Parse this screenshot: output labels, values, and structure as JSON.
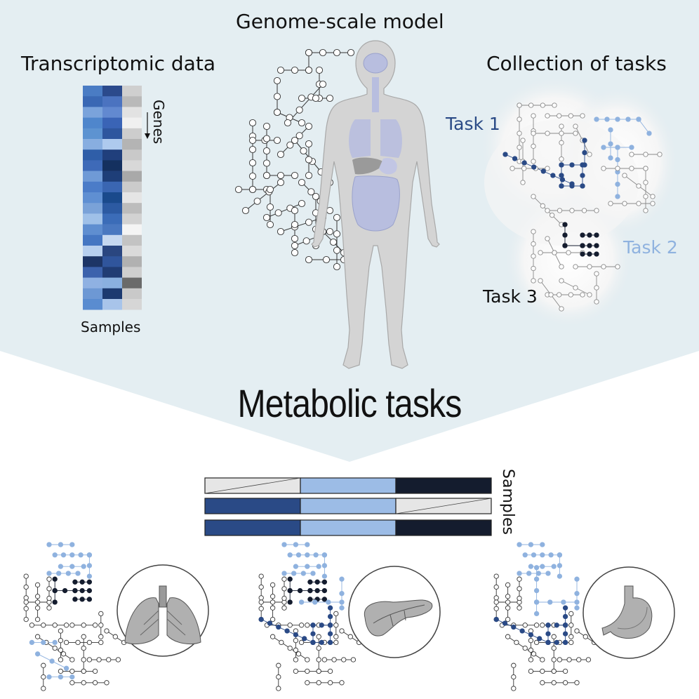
{
  "titles": {
    "genome_scale_model": "Genome-scale model",
    "transcriptomic_data": "Transcriptomic data",
    "collection_of_tasks": "Collection of tasks",
    "metabolic_tasks": "Metabolic tasks"
  },
  "heatmap": {
    "genes_label": "Genes",
    "samples_label": "Samples",
    "columns": [
      [
        "#4a7cc4",
        "#3a68b4",
        "#7aa3db",
        "#4f86cc",
        "#5d93d1",
        "#88aee0",
        "#2f5ea8",
        "#3e6ab8",
        "#6f9ad6",
        "#4b7cc8",
        "#5f8fd2",
        "#7aa2d8",
        "#9fc0e8",
        "#5f8ed0",
        "#4576c2",
        "#b7cfee",
        "#1d3566",
        "#3c62ac",
        "#8fb1e2",
        "#6d98d4",
        "#5a8cd0"
      ],
      [
        "#2b4a8c",
        "#4b73c0",
        "#6289d0",
        "#3a64b6",
        "#2e569e",
        "#aecaee",
        "#203f7c",
        "#14305f",
        "#1e3e78",
        "#3a66b2",
        "#1a4a8c",
        "#2c5aa2",
        "#3b6cb8",
        "#4a78c0",
        "#c6d8f0",
        "#2a4680",
        "#30559c",
        "#203c74",
        "#8ab0e0",
        "#1c3a70",
        "#a8c4ea"
      ],
      [
        "#cfcfcf",
        "#b9b9b9",
        "#e2e2e2",
        "#f0f0f0",
        "#cdcdcd",
        "#b4b4b4",
        "#c9c9c9",
        "#d8d8d8",
        "#a9a9a9",
        "#cbcbcb",
        "#e5e5e5",
        "#bcbcbc",
        "#d2d2d2",
        "#f4f4f4",
        "#c3c3c3",
        "#dadada",
        "#b1b1b1",
        "#cecece",
        "#6a6a6a",
        "#c9c9c9",
        "#d6d6d6"
      ]
    ]
  },
  "tasks": {
    "task1": "Task 1",
    "task2": "Task 2",
    "task3": "Task 3",
    "colors": {
      "task1": "#2a4a86",
      "task2": "#8fb2df",
      "task3": "#141c2e"
    }
  },
  "sample_bars": {
    "label": "Samples",
    "rows": [
      [
        "inactive",
        "task2",
        "task3"
      ],
      [
        "task1",
        "task2",
        "inactive"
      ],
      [
        "task1",
        "task2",
        "task3"
      ]
    ]
  },
  "organs": [
    "lung-icon",
    "pancreas-icon",
    "stomach-icon"
  ],
  "colors": {
    "background_panel": "#e4eef2",
    "body": "#d4d4d4",
    "organ_tint": "#b8bedf",
    "network_line": "#333333"
  }
}
